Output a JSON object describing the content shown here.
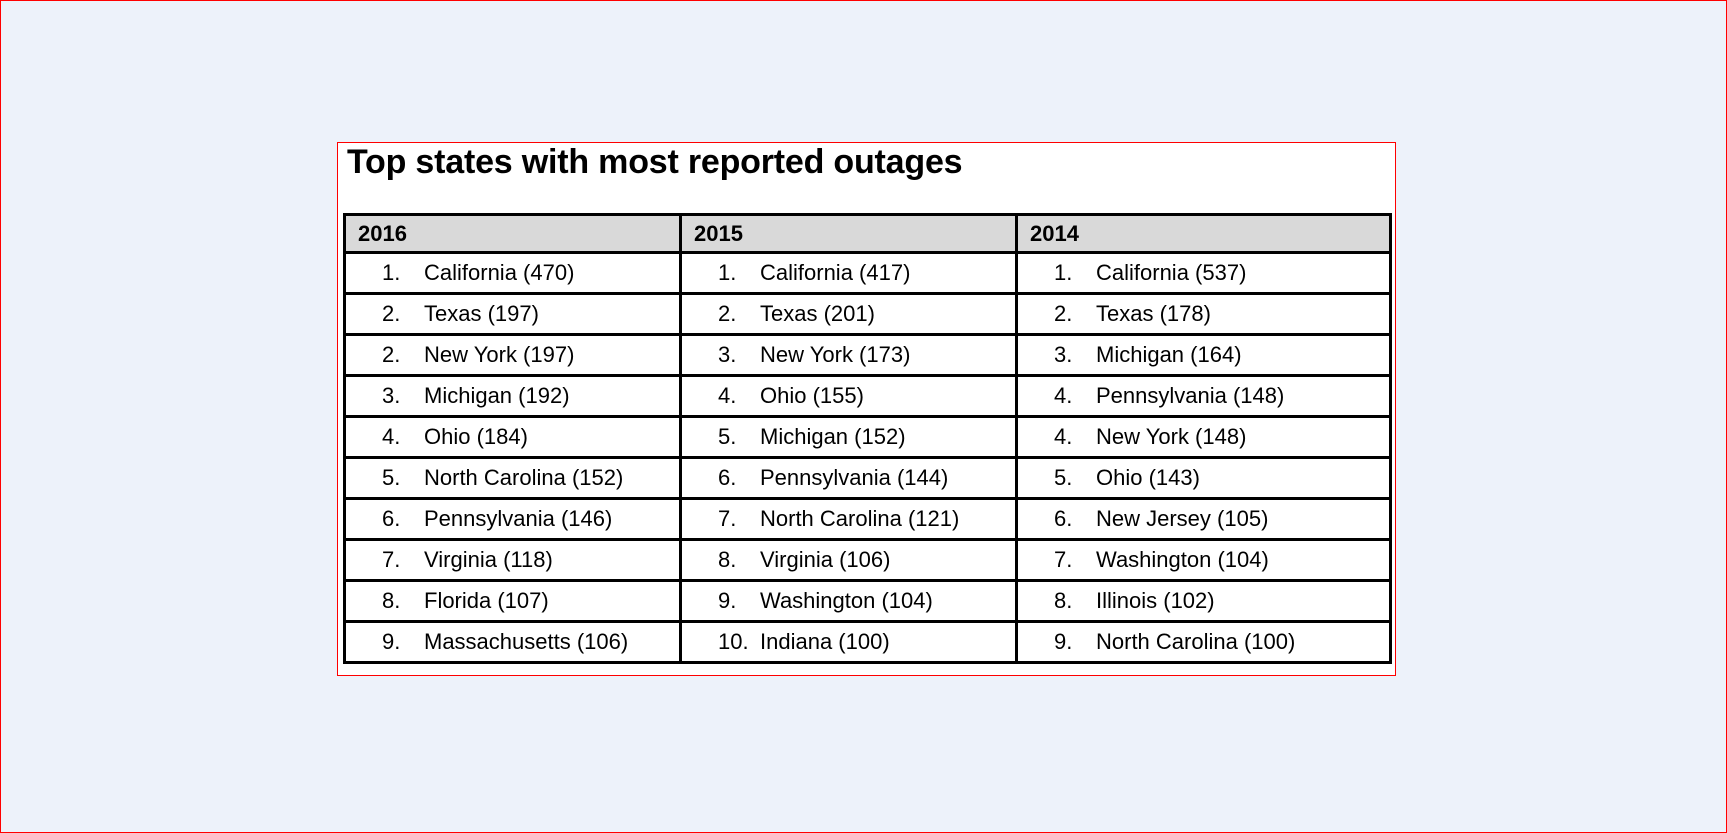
{
  "title": "Top states with most reported outages",
  "table": {
    "columns": [
      "2016",
      "2015",
      "2014"
    ],
    "rows": [
      [
        {
          "rank": "1.",
          "entry": "California (470)"
        },
        {
          "rank": "1.",
          "entry": "California (417)"
        },
        {
          "rank": "1.",
          "entry": "California (537)"
        }
      ],
      [
        {
          "rank": "2.",
          "entry": "Texas (197)"
        },
        {
          "rank": "2.",
          "entry": "Texas (201)"
        },
        {
          "rank": "2.",
          "entry": "Texas (178)"
        }
      ],
      [
        {
          "rank": "2.",
          "entry": "New York (197)"
        },
        {
          "rank": "3.",
          "entry": "New York (173)"
        },
        {
          "rank": "3.",
          "entry": "Michigan (164)"
        }
      ],
      [
        {
          "rank": "3.",
          "entry": "Michigan (192)"
        },
        {
          "rank": "4.",
          "entry": "Ohio (155)"
        },
        {
          "rank": "4.",
          "entry": "Pennsylvania (148)"
        }
      ],
      [
        {
          "rank": "4.",
          "entry": "Ohio (184)"
        },
        {
          "rank": "5.",
          "entry": "Michigan (152)"
        },
        {
          "rank": "4.",
          "entry": "New York (148)"
        }
      ],
      [
        {
          "rank": "5.",
          "entry": "North Carolina (152)"
        },
        {
          "rank": "6.",
          "entry": "Pennsylvania (144)"
        },
        {
          "rank": "5.",
          "entry": "Ohio (143)"
        }
      ],
      [
        {
          "rank": "6.",
          "entry": "Pennsylvania (146)"
        },
        {
          "rank": "7.",
          "entry": "North Carolina (121)"
        },
        {
          "rank": "6.",
          "entry": "New Jersey (105)"
        }
      ],
      [
        {
          "rank": "7.",
          "entry": "Virginia (118)"
        },
        {
          "rank": "8.",
          "entry": "Virginia (106)"
        },
        {
          "rank": "7.",
          "entry": "Washington (104)"
        }
      ],
      [
        {
          "rank": "8.",
          "entry": "Florida (107)"
        },
        {
          "rank": "9.",
          "entry": "Washington (104)"
        },
        {
          "rank": "8.",
          "entry": "Illinois (102)"
        }
      ],
      [
        {
          "rank": "9.",
          "entry": "Massachusetts (106)"
        },
        {
          "rank": "10.",
          "entry": "Indiana (100)"
        },
        {
          "rank": "9.",
          "entry": "North Carolina (100)"
        }
      ]
    ]
  }
}
